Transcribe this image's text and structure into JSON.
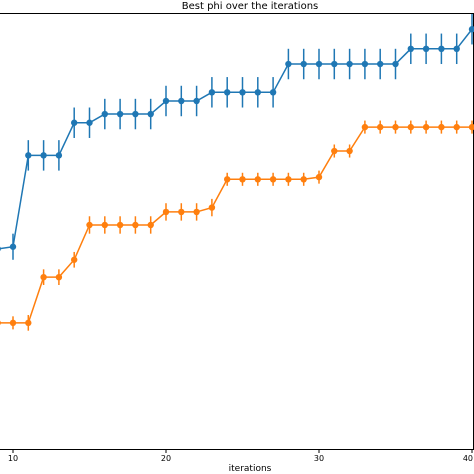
{
  "chart_data": {
    "type": "line",
    "title": "Best phi over the iterations",
    "xlabel": "iterations",
    "ylabel": "",
    "x_visible_range": [
      9.2,
      40
    ],
    "xticks": [
      10,
      20,
      30,
      40
    ],
    "xtick_labels": [
      "10",
      "20",
      "30",
      "40"
    ],
    "y_range": [
      0,
      100
    ],
    "grid": false,
    "series": [
      {
        "color": "#1f77b4",
        "x": [
          9,
          10,
          11,
          12,
          13,
          14,
          15,
          16,
          17,
          18,
          19,
          20,
          21,
          22,
          23,
          24,
          25,
          26,
          27,
          28,
          29,
          30,
          31,
          32,
          33,
          34,
          35,
          36,
          37,
          38,
          39,
          40
        ],
        "y": [
          46,
          46.5,
          67.5,
          67.5,
          67.5,
          75,
          75,
          77,
          77,
          77,
          77,
          80,
          80,
          80,
          82,
          82,
          82,
          82,
          82,
          88.5,
          88.5,
          88.5,
          88.5,
          88.5,
          88.5,
          88.5,
          88.5,
          92,
          92,
          92,
          92,
          96.5
        ],
        "err": [
          3,
          3,
          3.5,
          3.5,
          3.5,
          3.5,
          3.5,
          3.5,
          3.5,
          3.5,
          3.5,
          3.5,
          3.5,
          3.5,
          3.5,
          3.5,
          3.5,
          3.5,
          3.5,
          3.5,
          3.5,
          3.5,
          3.5,
          3.5,
          3.5,
          3.5,
          3.5,
          3.5,
          3.5,
          3.5,
          3.5,
          3.5
        ]
      },
      {
        "color": "#ff7f0e",
        "x": [
          9,
          10,
          11,
          12,
          13,
          14,
          15,
          16,
          17,
          18,
          19,
          20,
          21,
          22,
          23,
          24,
          25,
          26,
          27,
          28,
          29,
          30,
          31,
          32,
          33,
          34,
          35,
          36,
          37,
          38,
          39,
          40
        ],
        "y": [
          29,
          29,
          29,
          39.5,
          39.5,
          43.5,
          51.5,
          51.5,
          51.5,
          51.5,
          51.5,
          54.5,
          54.5,
          54.5,
          55.5,
          62,
          62,
          62,
          62,
          62,
          62,
          62.5,
          68.5,
          68.5,
          74,
          74,
          74,
          74,
          74,
          74,
          74,
          74
        ],
        "err": [
          1.5,
          1.5,
          1.8,
          1.8,
          1.8,
          1.8,
          2,
          2,
          2,
          2,
          2,
          2,
          2,
          2,
          2,
          1.5,
          1.5,
          1.5,
          1.5,
          1.5,
          1.5,
          1.5,
          1.5,
          1.5,
          1.5,
          1.5,
          1.5,
          1.5,
          1.5,
          1.5,
          1.5,
          1.5
        ]
      }
    ]
  }
}
